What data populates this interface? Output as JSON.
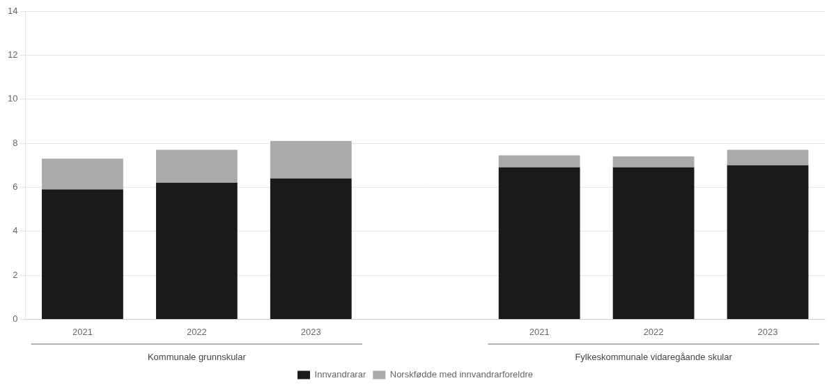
{
  "chart_data": {
    "type": "bar",
    "stacked": true,
    "categories": [
      "2021",
      "2022",
      "2023",
      null,
      "2021",
      "2022",
      "2023"
    ],
    "series": [
      {
        "name": "Innvandrarar",
        "color": "#1a1a1a",
        "values": [
          5.9,
          6.2,
          6.4,
          null,
          6.9,
          6.9,
          7.0
        ]
      },
      {
        "name": "Norskfødde med innvandrarforeldre",
        "color": "#aaaaaa",
        "values": [
          1.4,
          1.5,
          1.7,
          null,
          0.55,
          0.5,
          0.7
        ]
      }
    ],
    "annotations": [
      "Kommunale grunnskular",
      "Fylkeskommunale vidaregåande skular"
    ],
    "ylim": [
      0,
      14
    ],
    "yticks": [
      0,
      2,
      4,
      6,
      8,
      10,
      12,
      14
    ],
    "grid": true,
    "legend": "bottom"
  }
}
